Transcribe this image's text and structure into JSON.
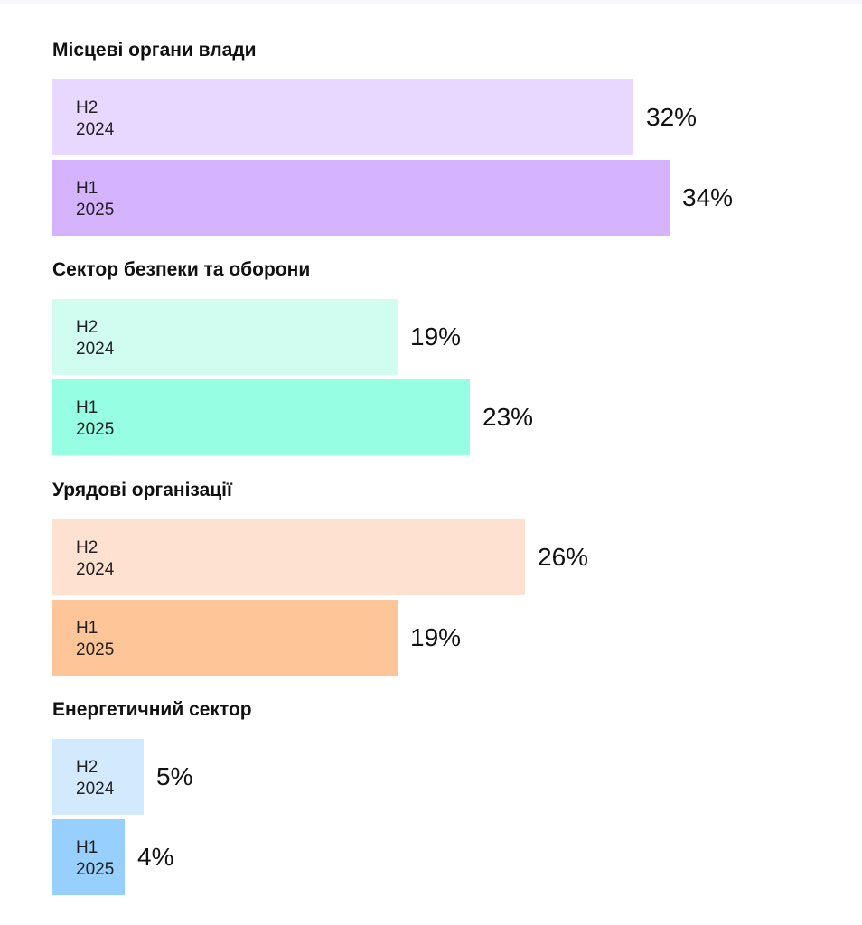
{
  "chart_data": {
    "type": "bar",
    "orientation": "horizontal",
    "value_unit": "%",
    "groups": [
      {
        "title": "Місцеві органи влади",
        "bars": [
          {
            "period_line1": "H2",
            "period_line2": "2024",
            "value": 32,
            "label": "32%",
            "color": "#e8d7ff"
          },
          {
            "period_line1": "H1",
            "period_line2": "2025",
            "value": 34,
            "label": "34%",
            "color": "#d5b3ff"
          }
        ]
      },
      {
        "title": "Сектор безпеки та оборони",
        "bars": [
          {
            "period_line1": "H2",
            "period_line2": "2024",
            "value": 19,
            "label": "19%",
            "color": "#d1fdf1"
          },
          {
            "period_line1": "H1",
            "period_line2": "2025",
            "value": 23,
            "label": "23%",
            "color": "#96fee3"
          }
        ]
      },
      {
        "title": "Урядові організації",
        "bars": [
          {
            "period_line1": "H2",
            "period_line2": "2024",
            "value": 26,
            "label": "26%",
            "color": "#ffe1d1"
          },
          {
            "period_line1": "H1",
            "period_line2": "2025",
            "value": 19,
            "label": "19%",
            "color": "#fec598"
          }
        ]
      },
      {
        "title": "Енергетичний сектор",
        "bars": [
          {
            "period_line1": "H2",
            "period_line2": "2024",
            "value": 5,
            "label": "5%",
            "color": "#d2e9fe"
          },
          {
            "period_line1": "H1",
            "period_line2": "2025",
            "value": 4,
            "label": "4%",
            "color": "#97cfff"
          }
        ]
      }
    ]
  }
}
